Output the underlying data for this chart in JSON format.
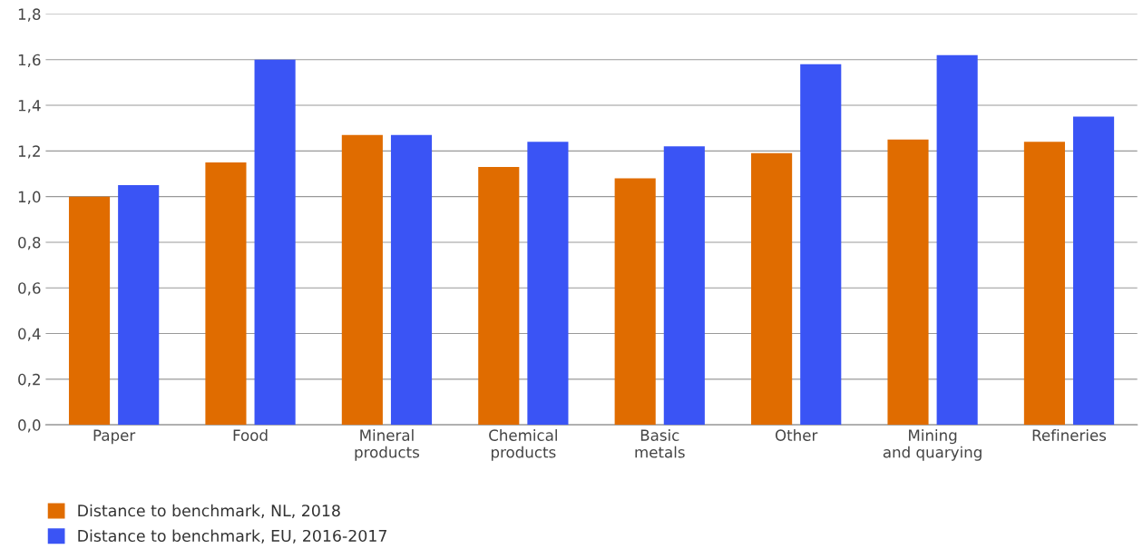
{
  "chart_data": {
    "type": "bar",
    "categories": [
      "Paper",
      "Food",
      "Mineral\nproducts",
      "Chemical\nproducts",
      "Basic\nmetals",
      "Other",
      "Mining\nand quarying",
      "Refineries"
    ],
    "series": [
      {
        "name": "Distance to benchmark, NL, 2018",
        "color": "#e06c00",
        "values": [
          1.0,
          1.15,
          1.27,
          1.13,
          1.08,
          1.19,
          1.25,
          1.24
        ]
      },
      {
        "name": "Distance to benchmark, EU, 2016-2017",
        "color": "#3a54f5",
        "values": [
          1.05,
          1.6,
          1.27,
          1.24,
          1.22,
          1.58,
          1.62,
          1.35
        ]
      }
    ],
    "ylim": [
      0,
      1.8
    ],
    "yticks": [
      {
        "value": 0,
        "label": "0,0"
      },
      {
        "value": 0.2,
        "label": "0,2"
      },
      {
        "value": 0.4,
        "label": "0,4"
      },
      {
        "value": 0.6,
        "label": "0,6"
      },
      {
        "value": 0.8,
        "label": "0,8"
      },
      {
        "value": 1.0,
        "label": "1,0"
      },
      {
        "value": 1.2,
        "label": "1,2"
      },
      {
        "value": 1.4,
        "label": "1,4"
      },
      {
        "value": 1.6,
        "label": "1,6"
      },
      {
        "value": 1.8,
        "label": "1,8"
      }
    ],
    "grid": "y",
    "legend": "bottom left"
  }
}
